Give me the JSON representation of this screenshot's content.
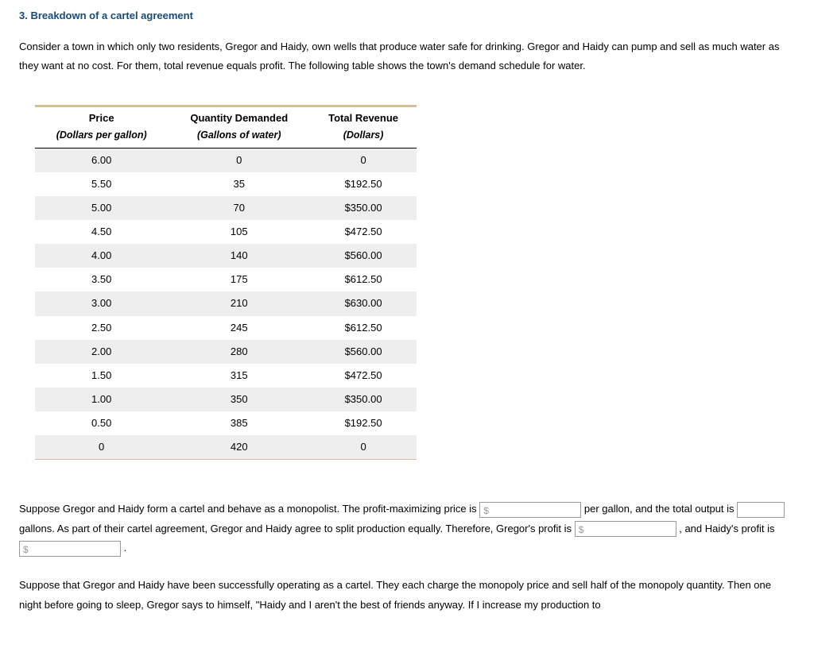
{
  "heading": "3. Breakdown of a cartel agreement",
  "intro": "Consider a town in which only two residents, Gregor and Haidy, own wells that produce water safe for drinking. Gregor and Haidy can pump and sell as much water as they want at no cost. For them, total revenue equals profit. The following table shows the town's demand schedule for water.",
  "table": {
    "col1_header": "Price",
    "col1_sub": "(Dollars per gallon)",
    "col2_header": "Quantity Demanded",
    "col2_sub": "(Gallons of water)",
    "col3_header": "Total Revenue",
    "col3_sub": "(Dollars)",
    "rows": [
      {
        "price": "6.00",
        "qty": "0",
        "rev": "0"
      },
      {
        "price": "5.50",
        "qty": "35",
        "rev": "$192.50"
      },
      {
        "price": "5.00",
        "qty": "70",
        "rev": "$350.00"
      },
      {
        "price": "4.50",
        "qty": "105",
        "rev": "$472.50"
      },
      {
        "price": "4.00",
        "qty": "140",
        "rev": "$560.00"
      },
      {
        "price": "3.50",
        "qty": "175",
        "rev": "$612.50"
      },
      {
        "price": "3.00",
        "qty": "210",
        "rev": "$630.00"
      },
      {
        "price": "2.50",
        "qty": "245",
        "rev": "$612.50"
      },
      {
        "price": "2.00",
        "qty": "280",
        "rev": "$560.00"
      },
      {
        "price": "1.50",
        "qty": "315",
        "rev": "$472.50"
      },
      {
        "price": "1.00",
        "qty": "350",
        "rev": "$350.00"
      },
      {
        "price": "0.50",
        "qty": "385",
        "rev": "$192.50"
      },
      {
        "price": "0",
        "qty": "420",
        "rev": "0"
      }
    ]
  },
  "para1": {
    "t1": "Suppose Gregor and Haidy form a cartel and behave as a monopolist. The profit-maximizing price is ",
    "box1_prefix": "$",
    "t2": " per gallon, and the total output is ",
    "t3": " gallons. As part of their cartel agreement, Gregor and Haidy agree to split production equally. Therefore, Gregor's profit is ",
    "box3_prefix": "$",
    "t4": " , and Haidy's profit is ",
    "box4_prefix": "$",
    "t5": " ."
  },
  "para2": "Suppose that Gregor and Haidy have been successfully operating as a cartel. They each charge the monopoly price and sell half of the monopoly quantity. Then one night before going to sleep, Gregor says to himself, \"Haidy and I aren't the best of friends anyway. If I increase my production to"
}
